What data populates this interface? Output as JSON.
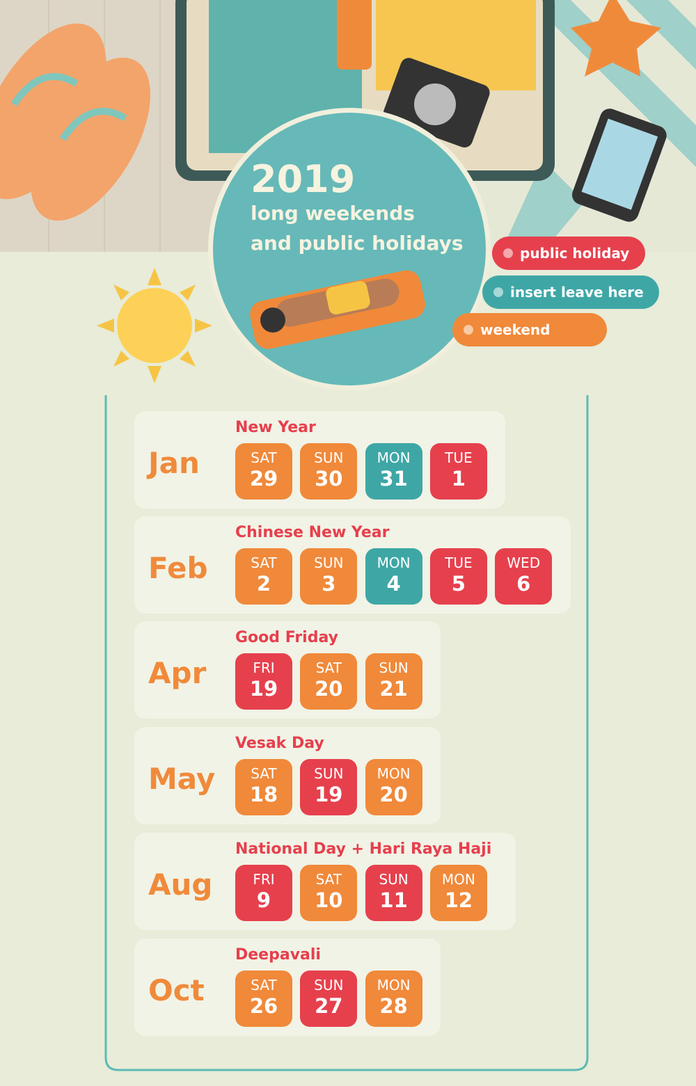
{
  "header": {
    "title": "2019",
    "subtitle": [
      "long weekends",
      "and public holidays"
    ]
  },
  "legend": [
    {
      "label": "public holiday",
      "color": "#e6404d"
    },
    {
      "label": "insert leave here",
      "color": "#3ea7a6"
    },
    {
      "label": "weekend",
      "color": "#f0893a"
    }
  ],
  "months": [
    {
      "month": "Jan",
      "holiday": "New Year",
      "days": [
        {
          "dow": "SAT",
          "date": 29,
          "color": "#f0893a"
        },
        {
          "dow": "SUN",
          "date": 30,
          "color": "#f0893a"
        },
        {
          "dow": "MON",
          "date": 31,
          "color": "#3ea7a6"
        },
        {
          "dow": "TUE",
          "date": 1,
          "color": "#e6404d"
        }
      ]
    },
    {
      "month": "Feb",
      "holiday": "Chinese New Year",
      "days": [
        {
          "dow": "SAT",
          "date": 2,
          "color": "#f0893a"
        },
        {
          "dow": "SUN",
          "date": 3,
          "color": "#f0893a"
        },
        {
          "dow": "MON",
          "date": 4,
          "color": "#3ea7a6"
        },
        {
          "dow": "TUE",
          "date": 5,
          "color": "#e6404d"
        },
        {
          "dow": "WED",
          "date": 6,
          "color": "#e6404d"
        }
      ]
    },
    {
      "month": "Apr",
      "holiday": "Good Friday",
      "days": [
        {
          "dow": "FRI",
          "date": 19,
          "color": "#e6404d"
        },
        {
          "dow": "SAT",
          "date": 20,
          "color": "#f0893a"
        },
        {
          "dow": "SUN",
          "date": 21,
          "color": "#f0893a"
        }
      ]
    },
    {
      "month": "May",
      "holiday": "Vesak Day",
      "days": [
        {
          "dow": "SAT",
          "date": 18,
          "color": "#f0893a"
        },
        {
          "dow": "SUN",
          "date": 19,
          "color": "#e6404d"
        },
        {
          "dow": "MON",
          "date": 20,
          "color": "#f0893a"
        }
      ]
    },
    {
      "month": "Aug",
      "holiday": "National Day + Hari Raya Haji",
      "days": [
        {
          "dow": "FRI",
          "date": 9,
          "color": "#e6404d"
        },
        {
          "dow": "SAT",
          "date": 10,
          "color": "#f0893a"
        },
        {
          "dow": "SUN",
          "date": 11,
          "color": "#e6404d"
        },
        {
          "dow": "MON",
          "date": 12,
          "color": "#f0893a"
        }
      ]
    },
    {
      "month": "Oct",
      "holiday": "Deepavali",
      "days": [
        {
          "dow": "SAT",
          "date": 26,
          "color": "#f0893a"
        },
        {
          "dow": "SUN",
          "date": 27,
          "color": "#e6404d"
        },
        {
          "dow": "MON",
          "date": 28,
          "color": "#f0893a"
        }
      ]
    }
  ]
}
